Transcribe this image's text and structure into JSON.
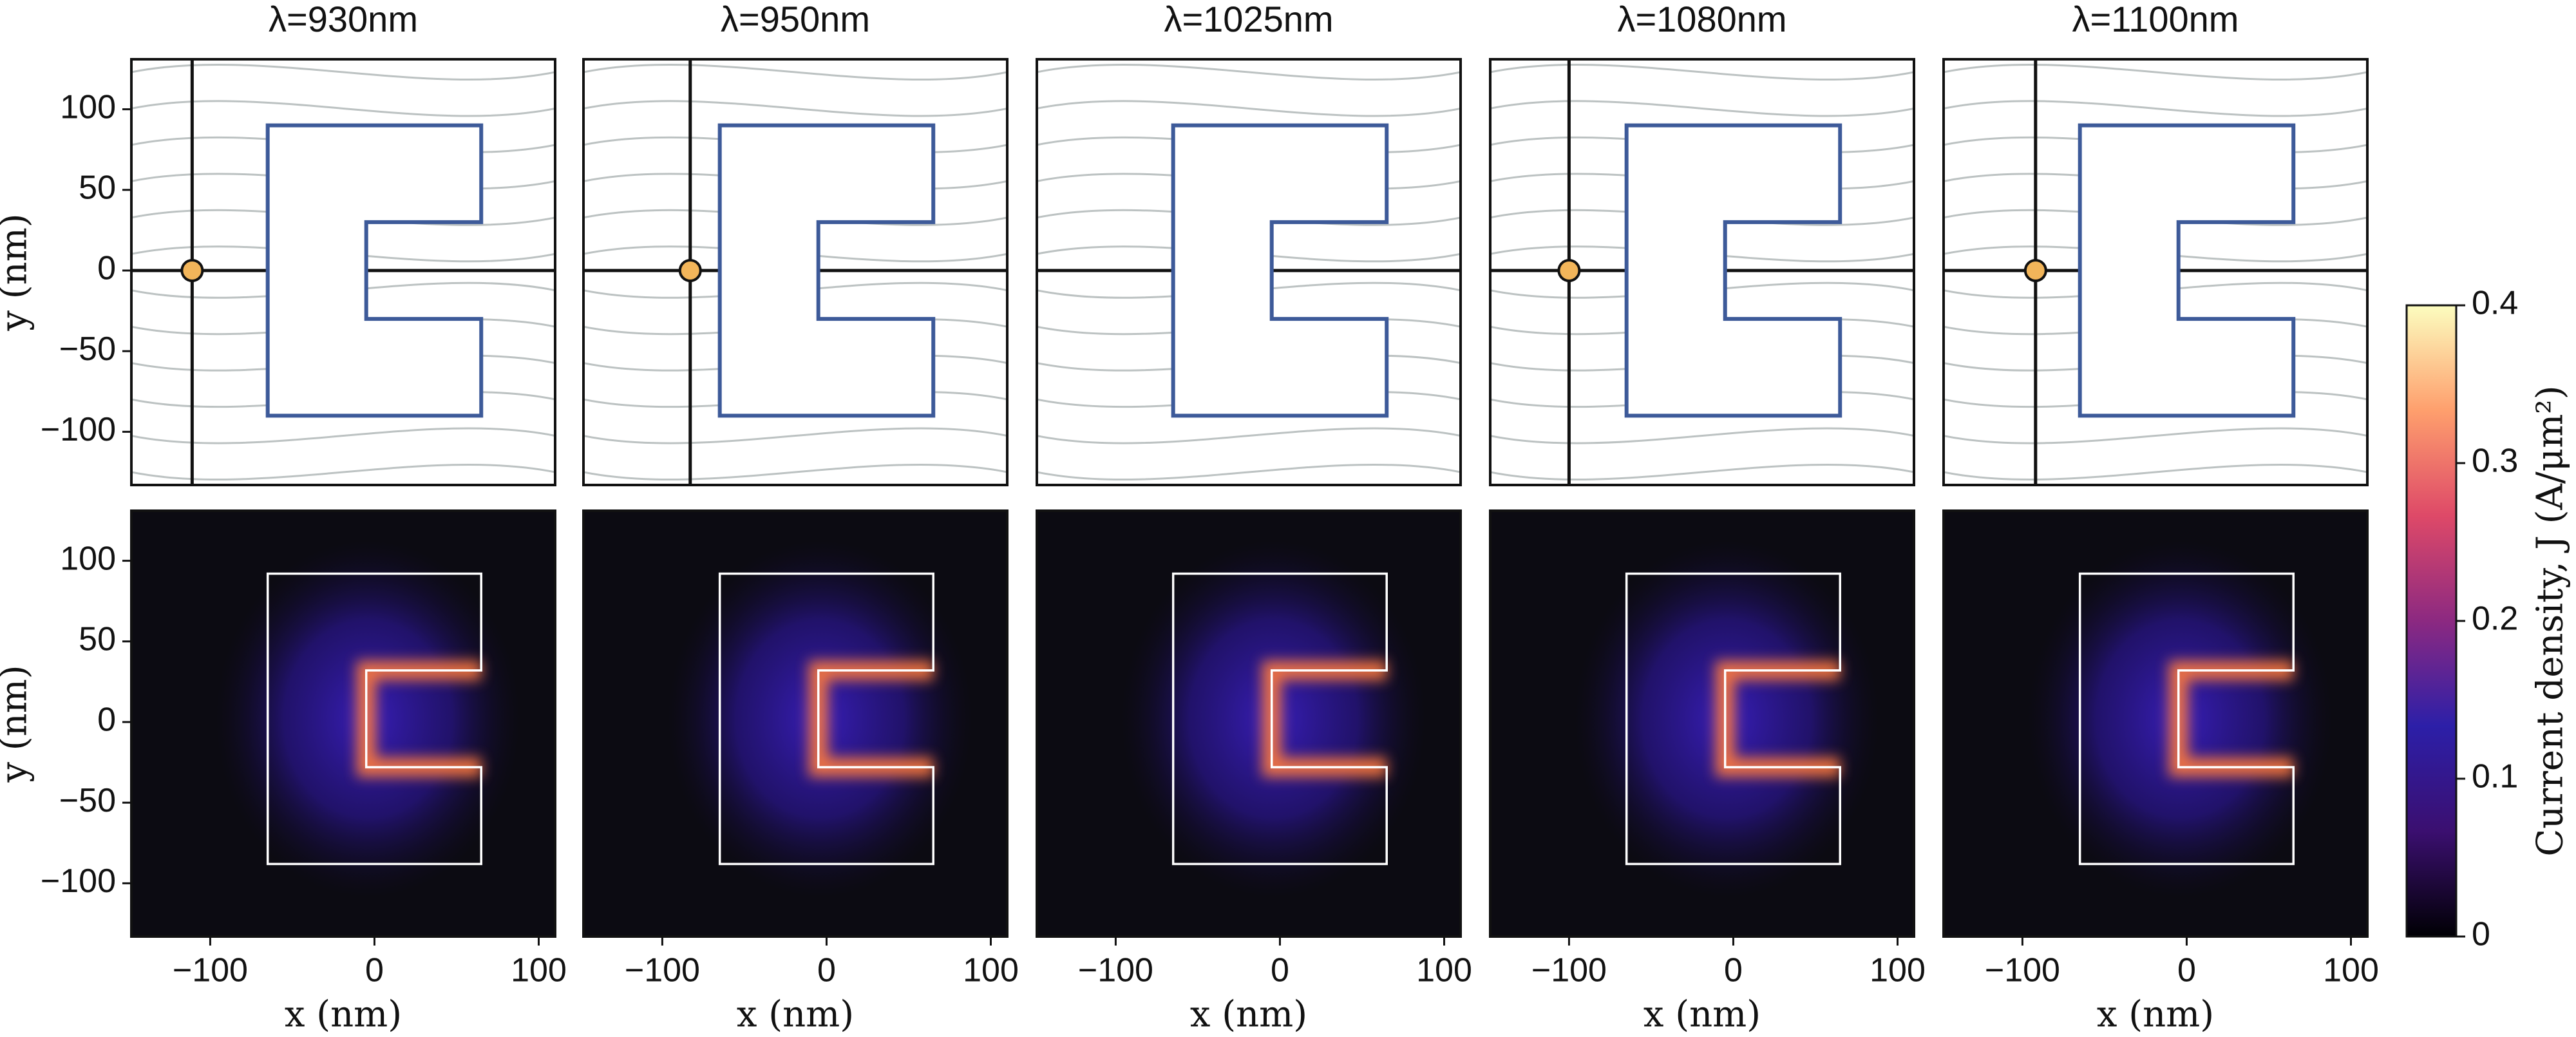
{
  "chart_data": [
    {
      "type": "streamplot",
      "title": "λ=930nm",
      "xlim": [
        -148,
        110
      ],
      "ylim": [
        -133,
        131
      ],
      "ylabel": "y (nm)",
      "yticks": [
        {
          "value": -100,
          "label": "−100"
        },
        {
          "value": -50,
          "label": "−50"
        },
        0,
        50,
        100
      ],
      "shape": {
        "x": [
          -65,
          65,
          65,
          -5,
          -5,
          65,
          65,
          -65
        ],
        "y": [
          90,
          90,
          30,
          30,
          -30,
          -30,
          -90,
          -90
        ]
      },
      "color": "#3d5a99",
      "saddle": {
        "x": -111,
        "y": 0
      }
    },
    {
      "type": "streamplot",
      "title": "λ=950nm",
      "xlim": [
        -148,
        110
      ],
      "ylim": [
        -133,
        131
      ],
      "shape": {
        "x": [
          -65,
          65,
          65,
          -5,
          -5,
          65,
          65,
          -65
        ],
        "y": [
          90,
          90,
          30,
          30,
          -30,
          -30,
          -90,
          -90
        ]
      },
      "color": "#3d5a99",
      "saddle": {
        "x": -83,
        "y": 0
      }
    },
    {
      "type": "streamplot",
      "title": "λ=1025nm",
      "xlim": [
        -148,
        110
      ],
      "ylim": [
        -133,
        131
      ],
      "shape": {
        "x": [
          -65,
          65,
          65,
          -5,
          -5,
          65,
          65,
          -65
        ],
        "y": [
          90,
          90,
          30,
          30,
          -30,
          -30,
          -90,
          -90
        ]
      },
      "color": "#3d5a99"
    },
    {
      "type": "streamplot",
      "title": "λ=1080nm",
      "xlim": [
        -148,
        110
      ],
      "ylim": [
        -133,
        131
      ],
      "shape": {
        "x": [
          -65,
          65,
          65,
          -5,
          -5,
          65,
          65,
          -65
        ],
        "y": [
          90,
          90,
          30,
          30,
          -30,
          -30,
          -90,
          -90
        ]
      },
      "color": "#3d5a99",
      "saddle": {
        "x": -100,
        "y": 0
      }
    },
    {
      "type": "streamplot",
      "title": "λ=1100nm",
      "xlim": [
        -148,
        110
      ],
      "ylim": [
        -133,
        131
      ],
      "shape": {
        "x": [
          -65,
          65,
          65,
          -5,
          -5,
          65,
          65,
          -65
        ],
        "y": [
          90,
          90,
          30,
          30,
          -30,
          -30,
          -90,
          -90
        ]
      },
      "color": "#3d5a99",
      "saddle": {
        "x": -92,
        "y": 0
      }
    },
    {
      "type": "heatmap",
      "xlim": [
        -148,
        110
      ],
      "ylim": [
        -133,
        131
      ],
      "xlabel": "x (nm)",
      "ylabel": "y (nm)",
      "xticks": [
        {
          "value": -100,
          "label": "−100"
        },
        0,
        100
      ],
      "yticks": [
        {
          "value": -100,
          "label": "−100"
        },
        {
          "value": -50,
          "label": "−50"
        },
        0,
        50,
        100
      ],
      "shape": {
        "x": [
          -65,
          65,
          65,
          -5,
          -5,
          65,
          65,
          -65
        ],
        "y": [
          92,
          92,
          32,
          32,
          -28,
          -28,
          -88,
          -88
        ]
      },
      "color": "#ffffff"
    },
    {
      "type": "heatmap",
      "xlim": [
        -148,
        110
      ],
      "ylim": [
        -133,
        131
      ],
      "xlabel": "x (nm)",
      "xticks": [
        {
          "value": -100,
          "label": "−100"
        },
        0,
        100
      ],
      "shape": {
        "x": [
          -65,
          65,
          65,
          -5,
          -5,
          65,
          65,
          -65
        ],
        "y": [
          92,
          92,
          32,
          32,
          -28,
          -28,
          -88,
          -88
        ]
      },
      "color": "#ffffff"
    },
    {
      "type": "heatmap",
      "xlim": [
        -148,
        110
      ],
      "ylim": [
        -133,
        131
      ],
      "xlabel": "x (nm)",
      "xticks": [
        {
          "value": -100,
          "label": "−100"
        },
        0,
        100
      ],
      "shape": {
        "x": [
          -65,
          65,
          65,
          -5,
          -5,
          65,
          65,
          -65
        ],
        "y": [
          92,
          92,
          32,
          32,
          -28,
          -28,
          -88,
          -88
        ]
      },
      "color": "#ffffff"
    },
    {
      "type": "heatmap",
      "xlim": [
        -148,
        110
      ],
      "ylim": [
        -133,
        131
      ],
      "xlabel": "x (nm)",
      "xticks": [
        {
          "value": -100,
          "label": "−100"
        },
        0,
        100
      ],
      "shape": {
        "x": [
          -65,
          65,
          65,
          -5,
          -5,
          65,
          65,
          -65
        ],
        "y": [
          92,
          92,
          32,
          32,
          -28,
          -28,
          -88,
          -88
        ]
      },
      "color": "#ffffff"
    },
    {
      "type": "heatmap",
      "xlim": [
        -148,
        110
      ],
      "ylim": [
        -133,
        131
      ],
      "xlabel": "x (nm)",
      "xticks": [
        {
          "value": -100,
          "label": "−100"
        },
        0,
        100
      ],
      "shape": {
        "x": [
          -65,
          65,
          65,
          -5,
          -5,
          65,
          65,
          -65
        ],
        "y": [
          92,
          92,
          32,
          32,
          -28,
          -28,
          -88,
          -88
        ]
      },
      "color": "#ffffff"
    },
    {
      "type": "colorbar",
      "label": "Current density, J (A/μm²)",
      "clim": [
        0,
        0.4
      ],
      "cticks": [
        0,
        0.1,
        0.2,
        0.3,
        0.4
      ],
      "colors": [
        "#000004",
        "#3b0f70",
        "#2c1fa8",
        "#8c2981",
        "#de4968",
        "#fe9f6d",
        "#fcfdbf"
      ]
    }
  ]
}
